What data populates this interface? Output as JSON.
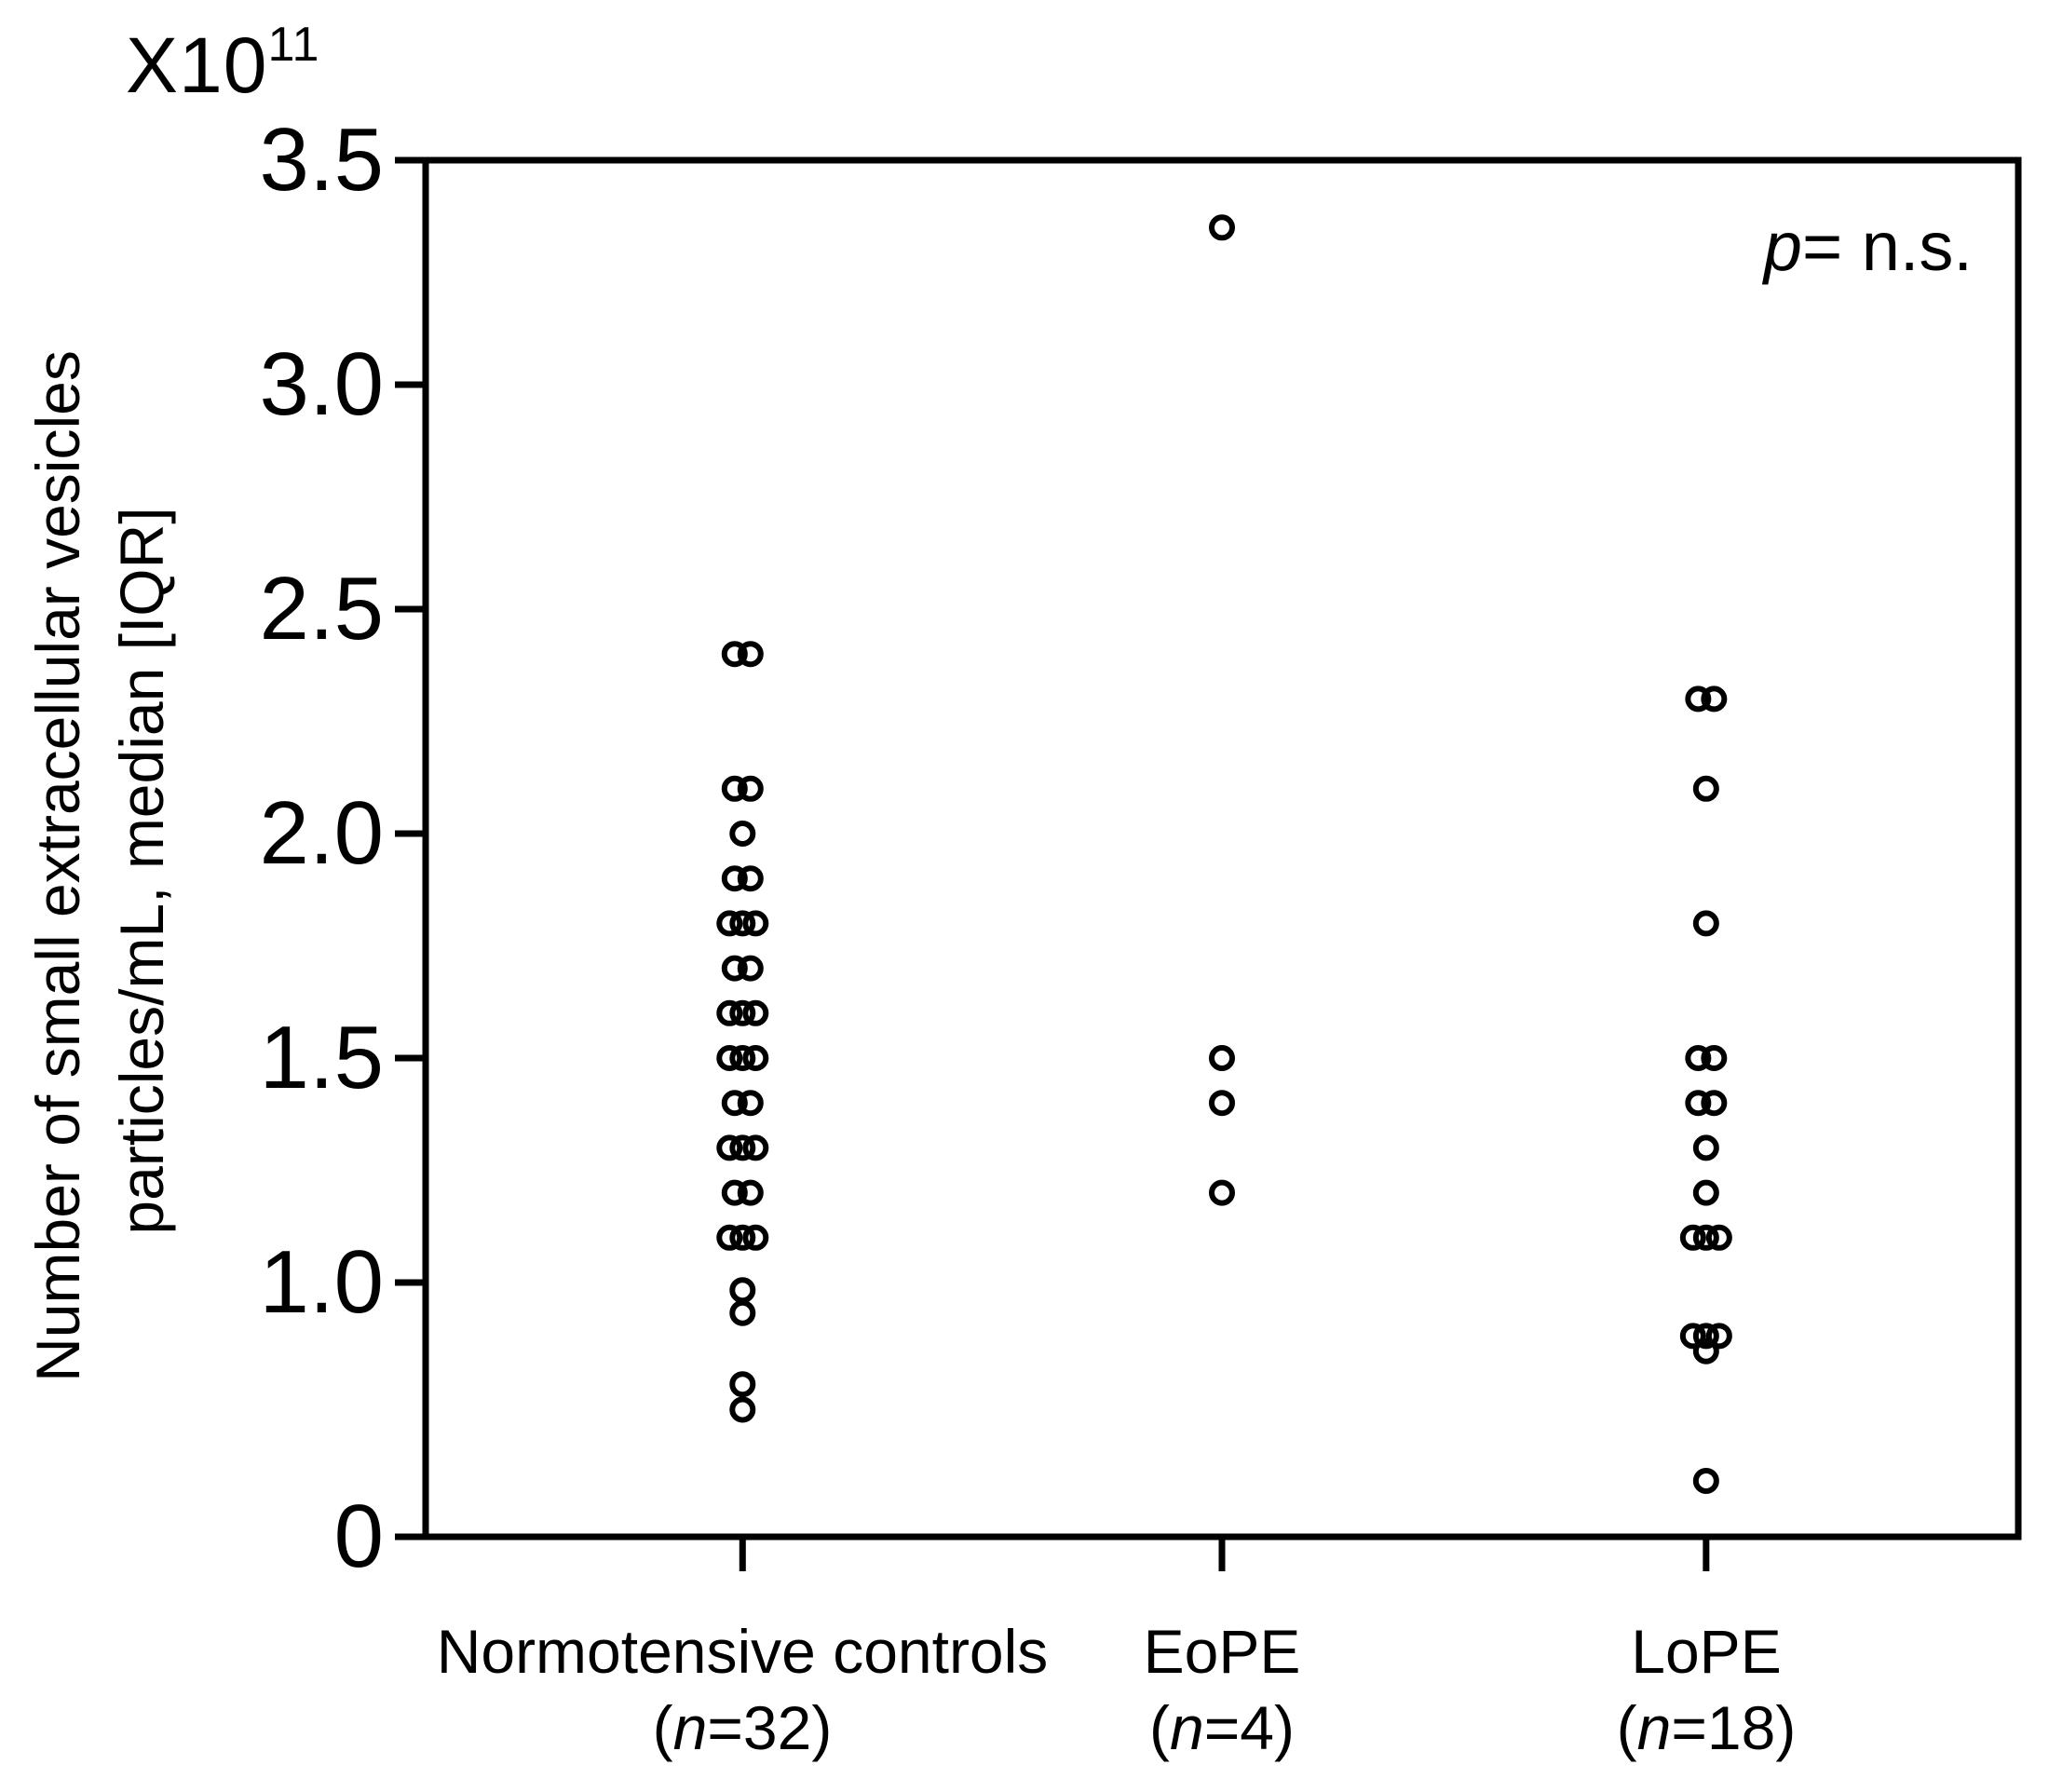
{
  "figure": {
    "background": "#ffffff",
    "ink": "#000000"
  },
  "y_axis": {
    "unit_base": "X10",
    "unit_exponent": "11",
    "title_line1": "Number of small extracellular vesicles",
    "title_line2": "particles/mL, median [IQR]"
  },
  "annotation": {
    "p_symbol": "p",
    "p_text": "= n.s."
  },
  "x_axis": {
    "groups": [
      {
        "label": "Normotensive controls",
        "n_open": "(",
        "n_italic": "n",
        "n_rest": "=32)"
      },
      {
        "label": "EoPE",
        "n_open": "(",
        "n_italic": "n",
        "n_rest": "=4)"
      },
      {
        "label": "LoPE",
        "n_open": "(",
        "n_italic": "n",
        "n_rest": "=18)"
      }
    ]
  },
  "chart_data": {
    "type": "scatter",
    "title": "",
    "ylabel": "Number of small extracellular vesicles particles/mL, median [IQR]",
    "y_unit": "X10^11 particles/mL",
    "ylim": [
      0,
      3.5
    ],
    "grid": false,
    "legend": "none",
    "p_value_note": "p= n.s.",
    "marker": {
      "shape": "open-circle",
      "color": "#000000"
    },
    "y_ticks": [
      {
        "label": "3.5",
        "v": 3.5
      },
      {
        "label": "3.0",
        "v": 3.0
      },
      {
        "label": "2.5",
        "v": 2.5
      },
      {
        "label": "2.0",
        "v": 2.0
      },
      {
        "label": "1.5",
        "v": 1.5
      },
      {
        "label": "1.0",
        "v": 1.0
      },
      {
        "label": "0",
        "v": 0
      }
    ],
    "categories": [
      "Normotensive controls (n=32)",
      "EoPE (n=4)",
      "LoPE (n=18)"
    ],
    "series": [
      {
        "name": "Normotensive controls",
        "n": 32,
        "rows": [
          {
            "v": 2.4,
            "count": 2
          },
          {
            "v": 2.1,
            "count": 2
          },
          {
            "v": 2.0,
            "count": 1
          },
          {
            "v": 1.9,
            "count": 2
          },
          {
            "v": 1.8,
            "count": 3
          },
          {
            "v": 1.7,
            "count": 2
          },
          {
            "v": 1.6,
            "count": 3
          },
          {
            "v": 1.5,
            "count": 3
          },
          {
            "v": 1.4,
            "count": 2
          },
          {
            "v": 1.3,
            "count": 3
          },
          {
            "v": 1.2,
            "count": 2
          },
          {
            "v": 1.1,
            "count": 3
          },
          {
            "v": 0.97,
            "count": 1
          },
          {
            "v": 0.88,
            "count": 1
          },
          {
            "v": 0.6,
            "count": 1
          },
          {
            "v": 0.5,
            "count": 1
          }
        ]
      },
      {
        "name": "EoPE",
        "n": 4,
        "rows": [
          {
            "v": 3.35,
            "count": 1
          },
          {
            "v": 1.5,
            "count": 1
          },
          {
            "v": 1.4,
            "count": 1
          },
          {
            "v": 1.2,
            "count": 1
          }
        ]
      },
      {
        "name": "LoPE",
        "n": 18,
        "rows": [
          {
            "v": 2.3,
            "count": 2
          },
          {
            "v": 2.1,
            "count": 1
          },
          {
            "v": 1.8,
            "count": 1
          },
          {
            "v": 1.5,
            "count": 2
          },
          {
            "v": 1.4,
            "count": 2
          },
          {
            "v": 1.3,
            "count": 1
          },
          {
            "v": 1.2,
            "count": 1
          },
          {
            "v": 1.1,
            "count": 3
          },
          {
            "v": 0.79,
            "count": 3
          },
          {
            "v": 0.73,
            "count": 1
          },
          {
            "v": 0.22,
            "count": 1
          }
        ]
      }
    ]
  }
}
